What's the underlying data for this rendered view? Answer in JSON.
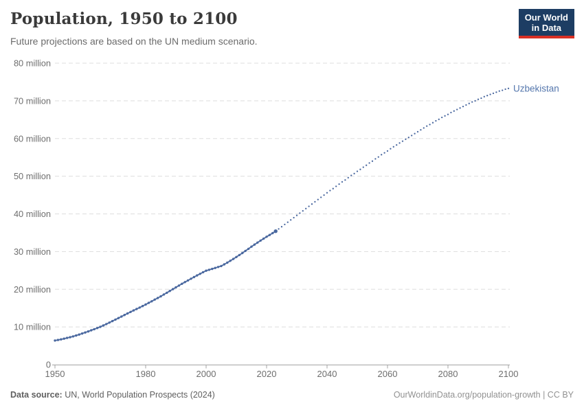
{
  "header": {
    "title": "Population, 1950 to 2100",
    "subtitle": "Future projections are based on the UN medium scenario.",
    "logo": {
      "line1": "Our World",
      "line2": "in Data",
      "bg_color": "#1d3d63",
      "accent_color": "#d93025"
    }
  },
  "footer": {
    "source_label": "Data source:",
    "source_text": " UN, World Population Prospects (2024)",
    "credit": "OurWorldinData.org/population-growth | CC BY"
  },
  "chart_data": {
    "type": "line",
    "title": "Population, 1950 to 2100",
    "subtitle": "Future projections are based on the UN medium scenario.",
    "entity_label": "Uzbekistan",
    "unit": "people (millions)",
    "xlabel": "",
    "ylabel": "",
    "xlim": [
      1950,
      2100
    ],
    "ylim": [
      0,
      80
    ],
    "grid": "horizontal-dashed",
    "legend_position": "end-of-line-label",
    "x_ticks": [
      1950,
      1980,
      2000,
      2020,
      2040,
      2060,
      2080,
      2100
    ],
    "y_ticks": [
      {
        "v": 0,
        "label": "0"
      },
      {
        "v": 10,
        "label": "10 million"
      },
      {
        "v": 20,
        "label": "20 million"
      },
      {
        "v": 30,
        "label": "30 million"
      },
      {
        "v": 40,
        "label": "40 million"
      },
      {
        "v": 50,
        "label": "50 million"
      },
      {
        "v": 60,
        "label": "60 million"
      },
      {
        "v": 70,
        "label": "70 million"
      },
      {
        "v": 80,
        "label": "80 million"
      }
    ],
    "style": {
      "line_color": "#4a689f",
      "grid_color": "#dddddd",
      "axis_color": "#a3a3a3",
      "axis_label_color": "#6e6e6e",
      "entity_label_color": "#5577ad"
    },
    "series": [
      {
        "name": "Uzbekistan (estimates)",
        "style": "solid-with-point-markers",
        "start_year": 1950,
        "values": [
          6.39,
          6.54,
          6.71,
          6.89,
          7.08,
          7.27,
          7.49,
          7.73,
          7.98,
          8.25,
          8.52,
          8.81,
          9.11,
          9.41,
          9.71,
          10.02,
          10.39,
          10.77,
          11.16,
          11.56,
          11.96,
          12.36,
          12.76,
          13.17,
          13.57,
          13.98,
          14.37,
          14.76,
          15.15,
          15.55,
          15.95,
          16.38,
          16.81,
          17.25,
          17.68,
          18.12,
          18.6,
          19.07,
          19.55,
          20.03,
          20.51,
          20.98,
          21.45,
          21.9,
          22.35,
          22.79,
          23.24,
          23.68,
          24.1,
          24.52,
          24.93,
          25.17,
          25.41,
          25.66,
          25.92,
          26.17,
          26.61,
          27.07,
          27.55,
          28.05,
          28.56,
          29.08,
          29.62,
          30.17,
          30.73,
          31.3,
          31.85,
          32.39,
          32.92,
          33.43,
          33.94,
          34.4,
          34.9,
          35.4
        ]
      },
      {
        "name": "Uzbekistan (UN medium projection)",
        "style": "dotted",
        "start_year": 2024,
        "values": [
          36.0,
          36.6,
          37.2,
          37.8,
          38.4,
          39.0,
          39.6,
          40.2,
          40.8,
          41.4,
          42.0,
          42.6,
          43.2,
          43.8,
          44.4,
          45.0,
          45.6,
          46.2,
          46.7,
          47.3,
          47.9,
          48.5,
          49.0,
          49.6,
          50.2,
          50.7,
          51.3,
          51.8,
          52.4,
          52.9,
          53.5,
          54.0,
          54.6,
          55.1,
          55.7,
          56.2,
          56.7,
          57.3,
          57.8,
          58.3,
          58.8,
          59.3,
          59.8,
          60.3,
          60.8,
          61.3,
          61.8,
          62.3,
          62.8,
          63.3,
          63.7,
          64.2,
          64.7,
          65.1,
          65.6,
          66.0,
          66.4,
          66.9,
          67.3,
          67.7,
          68.1,
          68.5,
          68.9,
          69.3,
          69.7,
          70.0,
          70.4,
          70.7,
          71.1,
          71.4,
          71.7,
          72.0,
          72.3,
          72.6,
          72.8,
          73.1,
          73.3
        ]
      }
    ]
  }
}
